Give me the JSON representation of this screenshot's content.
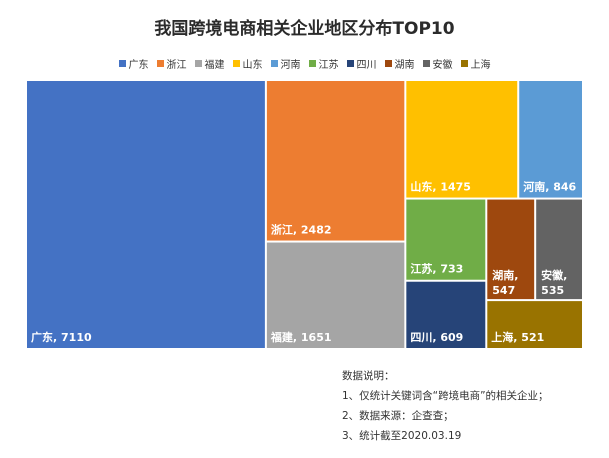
{
  "chart_data": {
    "type": "treemap",
    "title": "我国跨境电商相关企业地区分布TOP10",
    "legend_position": "top",
    "items": [
      {
        "name": "广东",
        "value": 7110,
        "color": "#4472C4",
        "label": "广东, 7110"
      },
      {
        "name": "浙江",
        "value": 2482,
        "color": "#ED7D31",
        "label": "浙江, 2482"
      },
      {
        "name": "福建",
        "value": 1651,
        "color": "#A5A5A5",
        "label": "福建, 1651"
      },
      {
        "name": "山东",
        "value": 1475,
        "color": "#FFC000",
        "label": "山东, 1475"
      },
      {
        "name": "河南",
        "value": 846,
        "color": "#5B9BD5",
        "label": "河南, 846"
      },
      {
        "name": "江苏",
        "value": 733,
        "color": "#70AD47",
        "label": "江苏, 733"
      },
      {
        "name": "四川",
        "value": 609,
        "color": "#264478",
        "label": "四川, 609"
      },
      {
        "name": "湖南",
        "value": 547,
        "color": "#9E480E",
        "label": "湖南, 547"
      },
      {
        "name": "安徽",
        "value": 535,
        "color": "#636363",
        "label": "安徽, 535"
      },
      {
        "name": "上海",
        "value": 521,
        "color": "#997300",
        "label": "上海, 521"
      }
    ]
  },
  "notes": {
    "heading": "数据说明：",
    "line1": "1、仅统计关键词含“跨境电商”的相关企业；",
    "line2": "2、数据来源：企查查；",
    "line3": "3、统计截至2020.03.19"
  }
}
